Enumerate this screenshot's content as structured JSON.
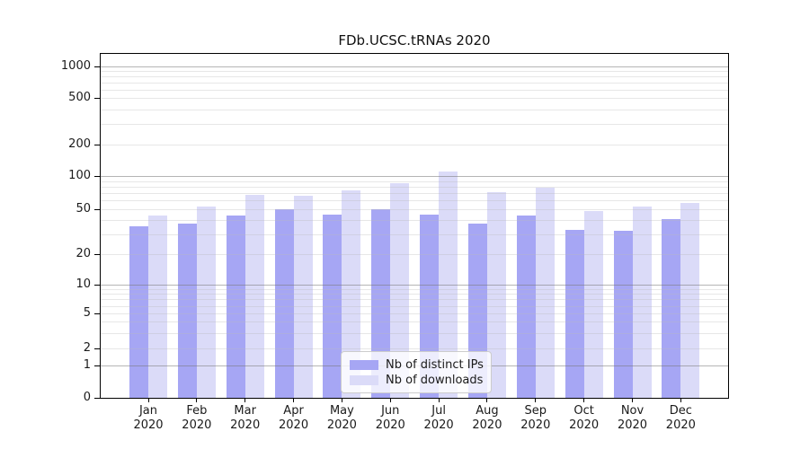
{
  "title": "FDb.UCSC.tRNAs 2020",
  "chart_data": {
    "type": "bar",
    "title": "FDb.UCSC.tRNAs 2020",
    "categories": [
      "Jan 2020",
      "Feb 2020",
      "Mar 2020",
      "Apr 2020",
      "May 2020",
      "Jun 2020",
      "Jul 2020",
      "Aug 2020",
      "Sep 2020",
      "Oct 2020",
      "Nov 2020",
      "Dec 2020"
    ],
    "series": [
      {
        "name": "Nb of distinct IPs",
        "color": "#a6a6f4",
        "values": [
          35,
          37,
          44,
          50,
          45,
          50,
          45,
          37,
          44,
          33,
          32,
          41
        ]
      },
      {
        "name": "Nb of downloads",
        "color": "#dbdbf8",
        "values": [
          44,
          53,
          68,
          66,
          74,
          86,
          110,
          71,
          78,
          48,
          53,
          57
        ]
      }
    ],
    "yscale": "log-like (symlog with 0 baseline)",
    "y_ticks": [
      0,
      1,
      2,
      5,
      10,
      20,
      50,
      100,
      200,
      500,
      1000
    ],
    "ylim": [
      0,
      1300
    ],
    "xlabel": "",
    "ylabel": "",
    "grid": true,
    "legend_position": "lower center"
  },
  "legend": {
    "items": [
      {
        "label": "Nb of distinct IPs",
        "color": "#a6a6f4"
      },
      {
        "label": "Nb of downloads",
        "color": "#dbdbf8"
      }
    ]
  },
  "colors": {
    "background": "#ffffff",
    "spine": "#000000",
    "major_grid": "#b3b3b3",
    "minor_grid": "#e7e7e7",
    "text": "#1a1a1a",
    "legend_border": "#cccccc"
  }
}
